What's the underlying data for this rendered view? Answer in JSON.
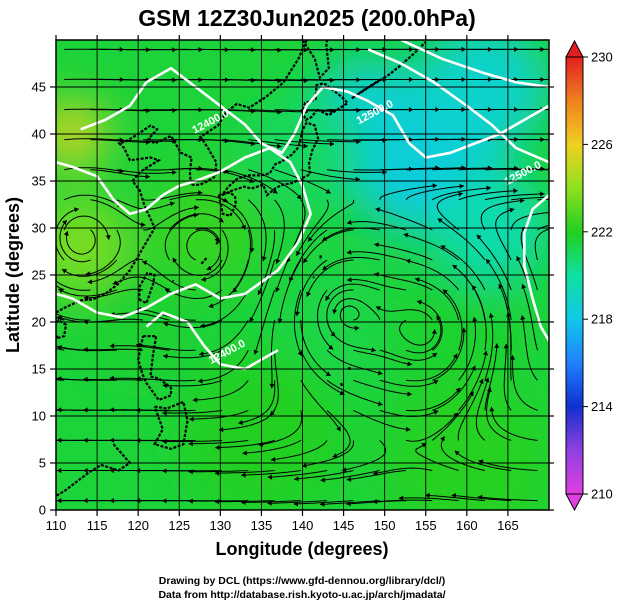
{
  "figure": {
    "title": "GSM 12Z30Jun2025 (200.0hPa)",
    "credits": [
      "Drawing by DCL (https://www.gfd-dennou.org/library/dcl/)",
      "Data from http://database.rish.kyoto-u.ac.jp/arch/jmadata/"
    ]
  },
  "chart_data": {
    "type": "heatmap",
    "title": "GSM 12Z30Jun2025 (200.0hPa)",
    "xlabel": "Longitude (degrees)",
    "ylabel": "Latitude  (degrees)",
    "xlim": [
      110,
      170
    ],
    "ylim": [
      0,
      50
    ],
    "x_ticks": [
      110,
      115,
      120,
      125,
      130,
      135,
      140,
      145,
      150,
      155,
      160,
      165
    ],
    "y_ticks": [
      0,
      5,
      10,
      15,
      20,
      25,
      30,
      35,
      40,
      45
    ],
    "grid": true,
    "colorbar": {
      "range": [
        210,
        230
      ],
      "ticks": [
        210,
        214,
        218,
        222,
        226,
        230
      ],
      "stops": [
        {
          "value": 210,
          "color": "#e040e0"
        },
        {
          "value": 212,
          "color": "#9040e0"
        },
        {
          "value": 214,
          "color": "#1030d0"
        },
        {
          "value": 216,
          "color": "#2080ff"
        },
        {
          "value": 218,
          "color": "#10c8e8"
        },
        {
          "value": 220,
          "color": "#10e0a0"
        },
        {
          "value": 222,
          "color": "#20d020"
        },
        {
          "value": 224,
          "color": "#90e020"
        },
        {
          "value": 226,
          "color": "#f0d020"
        },
        {
          "value": 228,
          "color": "#f08020"
        },
        {
          "value": 230,
          "color": "#e02020"
        }
      ]
    },
    "field_patches": [
      {
        "lon": 155,
        "lat": 38,
        "r": 10,
        "value": 218.3
      },
      {
        "lon": 148,
        "lat": 42,
        "r": 7,
        "value": 218.6
      },
      {
        "lon": 162,
        "lat": 45,
        "r": 8,
        "value": 218.8
      },
      {
        "lon": 163,
        "lat": 30,
        "r": 7,
        "value": 219.6
      },
      {
        "lon": 140,
        "lat": 38,
        "r": 7,
        "value": 221.0
      },
      {
        "lon": 112,
        "lat": 40,
        "r": 4,
        "value": 225.5
      },
      {
        "lon": 113,
        "lat": 28,
        "r": 6,
        "value": 223.6
      },
      {
        "lon": 120,
        "lat": 20,
        "r": 7,
        "value": 221.7
      },
      {
        "lon": 128,
        "lat": 30,
        "r": 7,
        "value": 222.4
      },
      {
        "lon": 145,
        "lat": 20,
        "r": 8,
        "value": 221.4
      },
      {
        "lon": 158,
        "lat": 18,
        "r": 8,
        "value": 221.8
      },
      {
        "lon": 135,
        "lat": 8,
        "r": 10,
        "value": 222.0
      },
      {
        "lon": 160,
        "lat": 5,
        "r": 10,
        "value": 222.1
      }
    ],
    "contours": [
      {
        "label": "12400.0",
        "label_at": [
          129,
          41
        ]
      },
      {
        "label": "12500.0",
        "label_at": [
          149,
          42
        ]
      },
      {
        "label": "12500.0",
        "label_at": [
          167,
          35.5
        ]
      },
      {
        "label": "12400.0",
        "label_at": [
          131,
          16.5
        ]
      }
    ],
    "circulation_centers": [
      {
        "type": "anticyclone",
        "lon": 128,
        "lat": 28
      },
      {
        "type": "cyclone",
        "lon": 145,
        "lat": 21
      },
      {
        "type": "cyclone",
        "lon": 155,
        "lat": 19
      },
      {
        "type": "anticyclone",
        "lon": 113,
        "lat": 29
      }
    ]
  }
}
